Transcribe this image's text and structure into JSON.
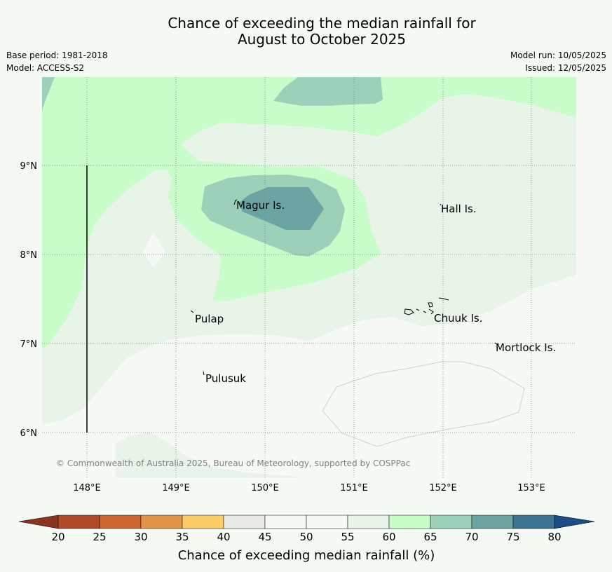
{
  "title": {
    "line1": "Chance of exceeding the median rainfall for",
    "line2": "August to October 2025"
  },
  "meta_left": {
    "base_period": "Base period: 1981-2018",
    "model": "Model: ACCESS-S2"
  },
  "meta_right": {
    "model_run": "Model run: 10/05/2025",
    "issued": "Issued: 12/05/2025"
  },
  "map": {
    "lon_labels": [
      "148°E",
      "149°E",
      "150°E",
      "151°E",
      "152°E",
      "153°E"
    ],
    "lat_labels": [
      "9°N",
      "8°N",
      "7°N",
      "6°N"
    ],
    "places": {
      "magur": "Magur Is.",
      "hall": "Hall Is.",
      "pulap": "Pulap",
      "chuuk": "Chuuk Is.",
      "mortlock": "Mortlock Is.",
      "pulusuk": "Pulusuk"
    },
    "copyright": "© Commonwealth of Australia 2025, Bureau of Meteorology, supported by COSPPac",
    "colors": {
      "bin_40_45": "#e8e8e4",
      "bin_45_55": "#f5faf5",
      "bin_55_60": "#e8f4e8",
      "bin_60_65": "#c8fcc8",
      "bin_65_70": "#9cd0b8",
      "bin_70_75": "#6ca4a4"
    }
  },
  "colorbar": {
    "title": "Chance of exceeding median rainfall (%)",
    "ticks": [
      "20",
      "25",
      "30",
      "35",
      "40",
      "45",
      "50",
      "55",
      "60",
      "65",
      "70",
      "75",
      "80"
    ],
    "colors": [
      "#b04a28",
      "#cc6530",
      "#e09448",
      "#fccc68",
      "#e8e8e4",
      "#f5faf5",
      "#f5faf5",
      "#e8f4e8",
      "#c8fcc8",
      "#9cd0b8",
      "#6ca4a4",
      "#3c7494"
    ],
    "under_color": "#8c3420",
    "over_color": "#1c4c84"
  }
}
